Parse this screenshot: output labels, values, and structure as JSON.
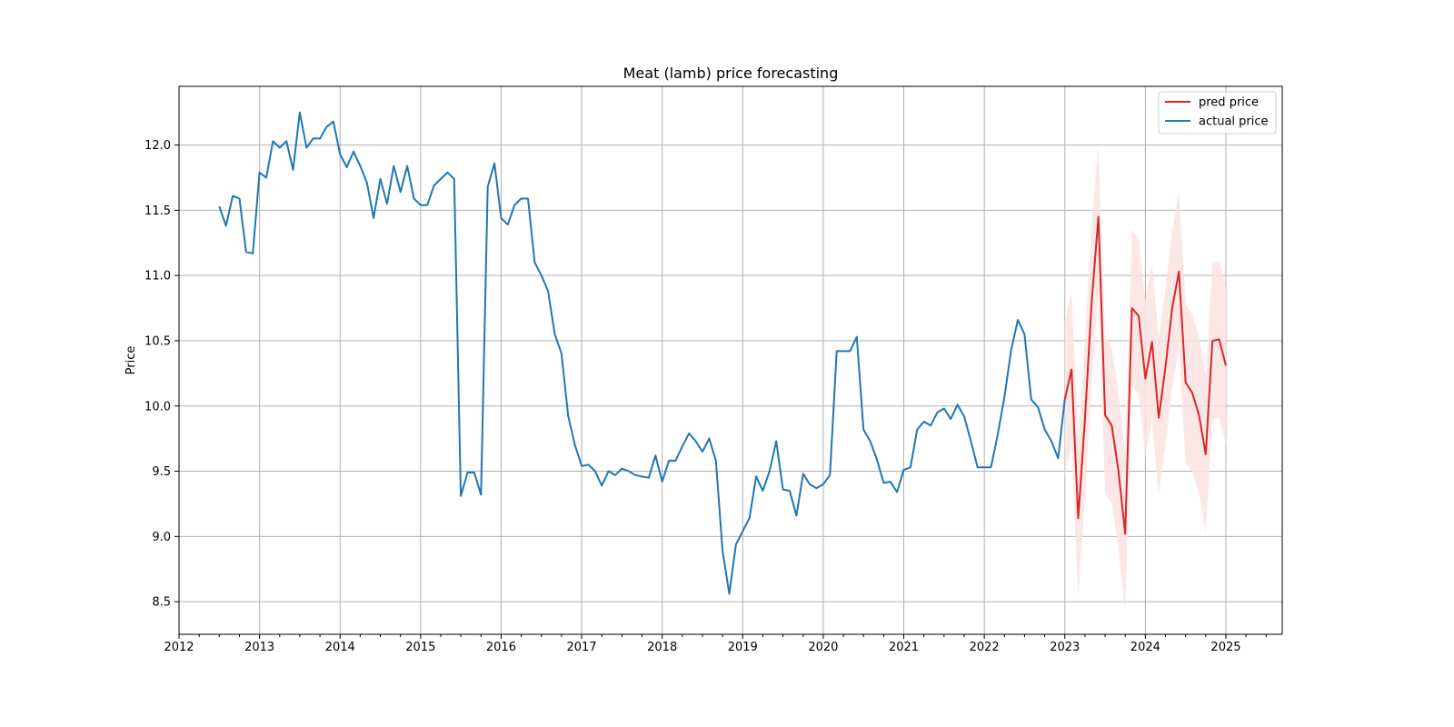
{
  "chart_data": {
    "type": "line",
    "title": "Meat (lamb) price forecasting",
    "xlabel": "",
    "ylabel": "Price",
    "xlim": [
      2012.0,
      2025.7
    ],
    "ylim": [
      8.25,
      12.45
    ],
    "x_ticks": [
      2012,
      2013,
      2014,
      2015,
      2016,
      2017,
      2018,
      2019,
      2020,
      2021,
      2022,
      2023,
      2024,
      2025
    ],
    "x_tick_labels": [
      "2012",
      "2013",
      "2014",
      "2015",
      "2016",
      "2017",
      "2018",
      "2019",
      "2020",
      "2021",
      "2022",
      "2023",
      "2024",
      "2025"
    ],
    "y_ticks": [
      8.5,
      9.0,
      9.5,
      10.0,
      10.5,
      11.0,
      11.5,
      12.0
    ],
    "y_tick_labels": [
      "8.5",
      "9.0",
      "9.5",
      "10.0",
      "10.5",
      "11.0",
      "11.5",
      "12.0"
    ],
    "grid": true,
    "legend_position": "top-right",
    "colors": {
      "pred": "#d62728",
      "actual": "#1f77b4",
      "band": "#fbe3e3"
    },
    "series": [
      {
        "name": "pred price",
        "x": [
          "2023-01",
          "2023-02",
          "2023-03",
          "2023-04",
          "2023-05",
          "2023-06",
          "2023-07",
          "2023-08",
          "2023-09",
          "2023-10",
          "2023-11",
          "2023-12",
          "2024-01",
          "2024-02",
          "2024-03",
          "2024-04",
          "2024-05",
          "2024-06",
          "2024-07",
          "2024-08",
          "2024-09",
          "2024-10",
          "2024-11",
          "2024-12",
          "2025-01"
        ],
        "values": [
          10.05,
          10.28,
          9.14,
          9.9,
          10.8,
          11.45,
          9.93,
          9.85,
          9.5,
          9.02,
          10.75,
          10.69,
          10.21,
          10.49,
          9.91,
          10.3,
          10.75,
          11.03,
          10.18,
          10.1,
          9.93,
          9.63,
          10.5,
          10.51,
          10.31
        ],
        "lower": [
          9.45,
          9.7,
          8.53,
          9.3,
          10.2,
          10.9,
          9.33,
          9.25,
          8.9,
          8.42,
          10.15,
          10.1,
          9.61,
          9.89,
          9.31,
          9.7,
          10.15,
          10.45,
          9.56,
          9.5,
          9.33,
          9.03,
          9.9,
          9.91,
          9.71
        ],
        "upper": [
          10.65,
          10.88,
          9.74,
          10.5,
          11.4,
          12.0,
          10.53,
          10.45,
          10.1,
          9.62,
          11.35,
          11.28,
          10.81,
          11.09,
          10.51,
          10.9,
          11.35,
          11.65,
          10.78,
          10.7,
          10.53,
          10.23,
          11.1,
          11.11,
          10.91
        ]
      },
      {
        "name": "actual price",
        "x": [
          "2012-07",
          "2012-08",
          "2012-09",
          "2012-10",
          "2012-11",
          "2012-12",
          "2013-01",
          "2013-02",
          "2013-03",
          "2013-04",
          "2013-05",
          "2013-06",
          "2013-07",
          "2013-08",
          "2013-09",
          "2013-10",
          "2013-11",
          "2013-12",
          "2014-01",
          "2014-02",
          "2014-03",
          "2014-04",
          "2014-05",
          "2014-06",
          "2014-07",
          "2014-08",
          "2014-09",
          "2014-10",
          "2014-11",
          "2014-12",
          "2015-01",
          "2015-02",
          "2015-03",
          "2015-04",
          "2015-05",
          "2015-06",
          "2015-07",
          "2015-08",
          "2015-09",
          "2015-10",
          "2015-11",
          "2015-12",
          "2016-01",
          "2016-02",
          "2016-03",
          "2016-04",
          "2016-05",
          "2016-06",
          "2016-07",
          "2016-08",
          "2016-09",
          "2016-10",
          "2016-11",
          "2016-12",
          "2017-01",
          "2017-02",
          "2017-03",
          "2017-04",
          "2017-05",
          "2017-06",
          "2017-07",
          "2017-08",
          "2017-09",
          "2017-10",
          "2017-11",
          "2017-12",
          "2018-01",
          "2018-02",
          "2018-03",
          "2018-04",
          "2018-05",
          "2018-06",
          "2018-07",
          "2018-08",
          "2018-09",
          "2018-10",
          "2018-11",
          "2018-12",
          "2019-01",
          "2019-02",
          "2019-03",
          "2019-04",
          "2019-05",
          "2019-06",
          "2019-07",
          "2019-08",
          "2019-09",
          "2019-10",
          "2019-11",
          "2019-12",
          "2020-01",
          "2020-02",
          "2020-03",
          "2020-04",
          "2020-05",
          "2020-06",
          "2020-07",
          "2020-08",
          "2020-09",
          "2020-10",
          "2020-11",
          "2020-12",
          "2021-01",
          "2021-02",
          "2021-03",
          "2021-04",
          "2021-05",
          "2021-06",
          "2021-07",
          "2021-08",
          "2021-09",
          "2021-10",
          "2021-11",
          "2021-12",
          "2022-01",
          "2022-02",
          "2022-03",
          "2022-04",
          "2022-05",
          "2022-06",
          "2022-07",
          "2022-08",
          "2022-09",
          "2022-10",
          "2022-11",
          "2022-12",
          "2023-01"
        ],
        "values": [
          11.53,
          11.38,
          11.61,
          11.59,
          11.18,
          11.17,
          11.79,
          11.75,
          12.03,
          11.98,
          12.03,
          11.81,
          12.25,
          11.98,
          12.05,
          12.05,
          12.14,
          12.18,
          11.93,
          11.83,
          11.95,
          11.84,
          11.71,
          11.44,
          11.74,
          11.55,
          11.84,
          11.64,
          11.84,
          11.59,
          11.54,
          11.54,
          11.69,
          11.74,
          11.79,
          11.74,
          9.31,
          9.49,
          9.49,
          9.32,
          11.68,
          11.86,
          11.44,
          11.39,
          11.54,
          11.59,
          11.59,
          11.1,
          11.0,
          10.88,
          10.55,
          10.4,
          9.92,
          9.7,
          9.54,
          9.55,
          9.5,
          9.39,
          9.5,
          9.47,
          9.52,
          9.5,
          9.47,
          9.46,
          9.45,
          9.62,
          9.42,
          9.58,
          9.58,
          9.69,
          9.79,
          9.73,
          9.65,
          9.75,
          9.58,
          8.89,
          8.56,
          8.94,
          9.04,
          9.14,
          9.46,
          9.35,
          9.5,
          9.73,
          9.36,
          9.35,
          9.16,
          9.48,
          9.4,
          9.37,
          9.4,
          9.47,
          10.42,
          10.42,
          10.42,
          10.53,
          9.82,
          9.73,
          9.59,
          9.41,
          9.42,
          9.34,
          9.51,
          9.53,
          9.82,
          9.88,
          9.85,
          9.95,
          9.98,
          9.9,
          10.01,
          9.92,
          9.73,
          9.53,
          9.53,
          9.53,
          9.78,
          10.07,
          10.43,
          10.66,
          10.55,
          10.05,
          9.99,
          9.82,
          9.73,
          9.6,
          10.05
        ]
      }
    ]
  }
}
